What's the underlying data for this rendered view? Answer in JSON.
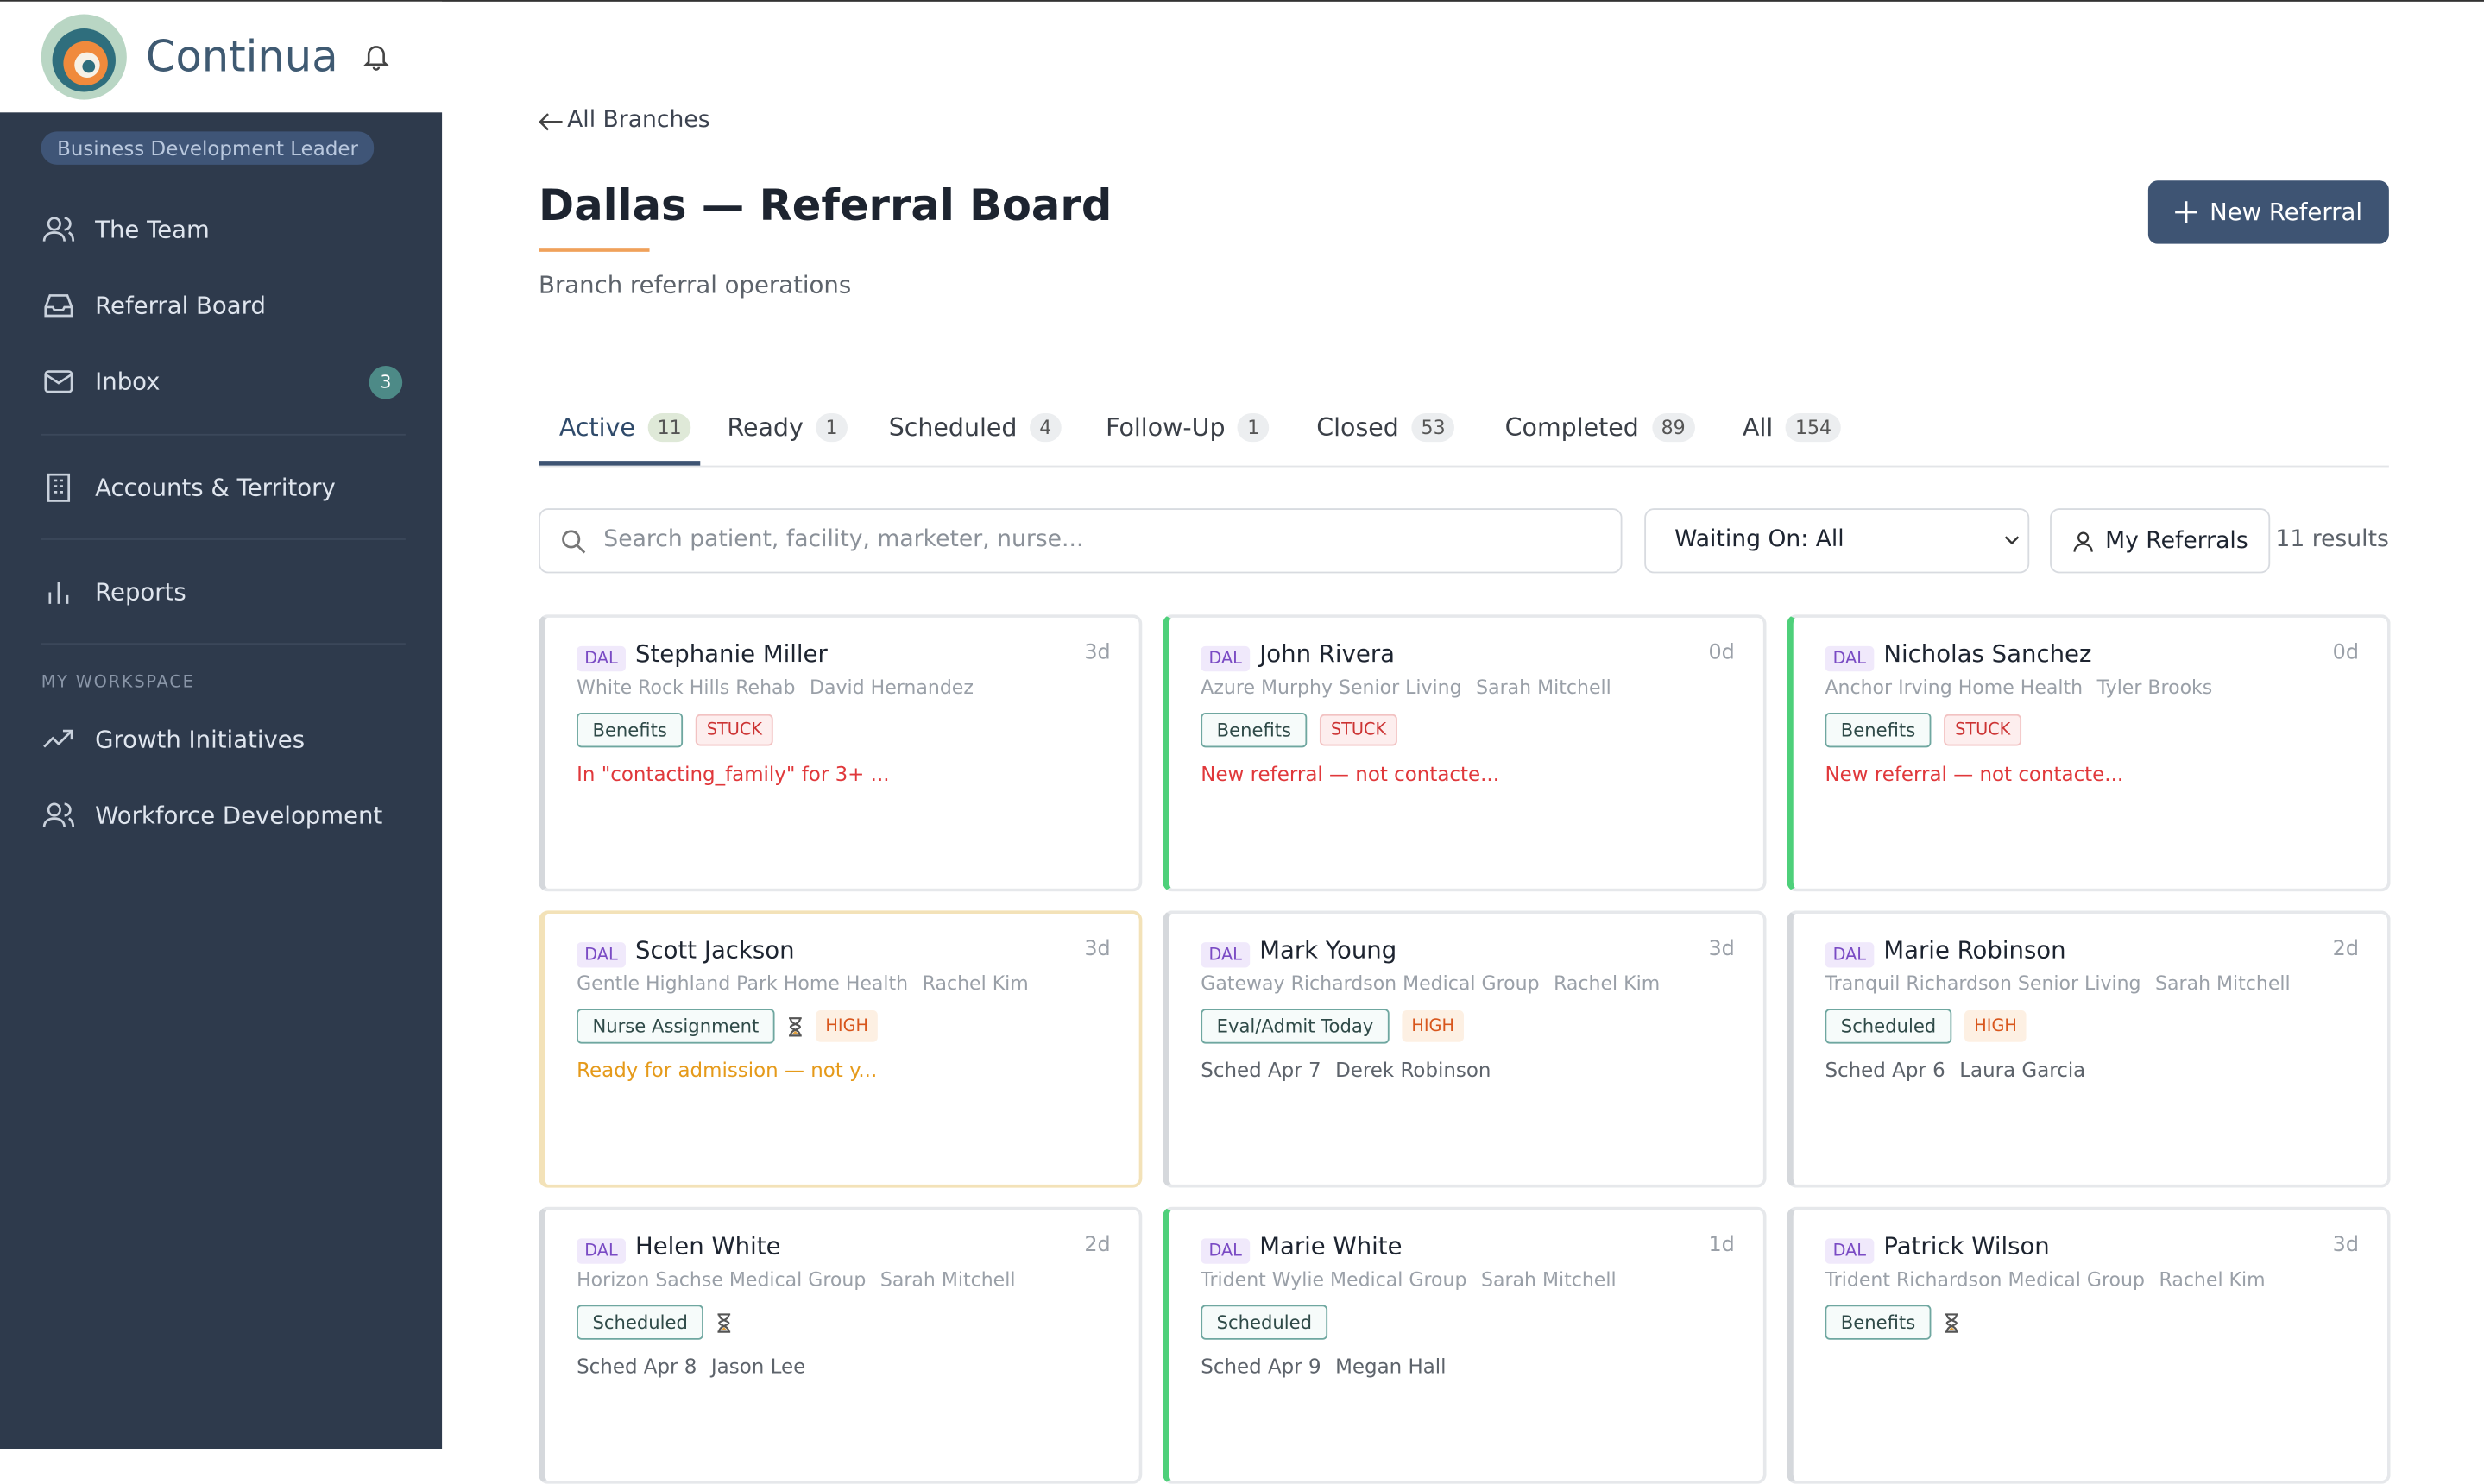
{
  "brand": "Continua",
  "role": "Business Development Leader",
  "nav": [
    {
      "label": "The Team"
    },
    {
      "label": "Referral Board"
    },
    {
      "label": "Inbox",
      "badge": 3
    },
    {
      "label": "Accounts & Territory"
    },
    {
      "label": "Reports"
    }
  ],
  "workspace": {
    "title": "MY WORKSPACE",
    "items": [
      {
        "label": "Growth Initiatives"
      },
      {
        "label": "Workforce Development"
      }
    ]
  },
  "back": "All Branches",
  "title": "Dallas — Referral Board",
  "subtitle": "Branch referral operations",
  "new_button": "New Referral",
  "tabs": [
    {
      "label": "Active",
      "count": 11
    },
    {
      "label": "Ready",
      "count": 1
    },
    {
      "label": "Scheduled",
      "count": 4
    },
    {
      "label": "Follow-Up",
      "count": 1
    },
    {
      "label": "Closed",
      "count": 53
    },
    {
      "label": "Completed",
      "count": 89
    },
    {
      "label": "All",
      "count": 154
    }
  ],
  "search_placeholder": "Search patient, facility, marketer, nurse...",
  "filter": "Waiting On: All",
  "my_referrals": "My Referrals",
  "results": "11 results",
  "cards": [
    {
      "branch": "DAL",
      "name": "Stephanie Miller",
      "facility": "White Rock Hills Rehab",
      "person": "David Hernandez",
      "age": "3d",
      "accent": "#d5d8dc",
      "tags": [
        {
          "label": "Benefits",
          "tone": "plain"
        },
        {
          "label": "STUCK",
          "tone": "red"
        }
      ],
      "note": "In \"contacting_family\" for 3+ ...",
      "note_tone": "red"
    },
    {
      "branch": "DAL",
      "name": "John Rivera",
      "facility": "Azure Murphy Senior Living",
      "person": "Sarah Mitchell",
      "age": "0d",
      "accent": "#4ed07a",
      "tags": [
        {
          "label": "Benefits",
          "tone": "plain"
        },
        {
          "label": "STUCK",
          "tone": "red"
        }
      ],
      "note": "New referral — not contacte...",
      "note_tone": "red"
    },
    {
      "branch": "DAL",
      "name": "Nicholas Sanchez",
      "facility": "Anchor Irving Home Health",
      "person": "Tyler Brooks",
      "age": "0d",
      "accent": "#4ed07a",
      "tags": [
        {
          "label": "Benefits",
          "tone": "plain"
        },
        {
          "label": "STUCK",
          "tone": "red"
        }
      ],
      "note": "New referral — not contacte...",
      "note_tone": "red"
    },
    {
      "branch": "DAL",
      "name": "Scott Jackson",
      "facility": "Gentle Highland Park Home Health",
      "person": "Rachel Kim",
      "age": "3d",
      "accent": "#f3e2b8",
      "tags": [
        {
          "label": "Nurse Assignment",
          "tone": "plain"
        },
        {
          "label": "HIGH",
          "tone": "orange"
        }
      ],
      "waiting": true,
      "note": "Ready for admission — not y...",
      "note_tone": "amber"
    },
    {
      "branch": "DAL",
      "name": "Mark Young",
      "facility": "Gateway Richardson Medical Group",
      "person": "Rachel Kim",
      "age": "3d",
      "accent": "#d5d8dc",
      "tags": [
        {
          "label": "Eval/Admit Today",
          "tone": "plain"
        },
        {
          "label": "HIGH",
          "tone": "orange"
        }
      ],
      "schedule": [
        "Sched Apr 7",
        "Derek Robinson"
      ]
    },
    {
      "branch": "DAL",
      "name": "Marie Robinson",
      "facility": "Tranquil Richardson Senior Living",
      "person": "Sarah Mitchell",
      "age": "2d",
      "accent": "#d5d8dc",
      "tags": [
        {
          "label": "Scheduled",
          "tone": "plain"
        },
        {
          "label": "HIGH",
          "tone": "orange"
        }
      ],
      "schedule": [
        "Sched Apr 6",
        "Laura Garcia"
      ]
    },
    {
      "branch": "DAL",
      "name": "Helen White",
      "facility": "Horizon Sachse Medical Group",
      "person": "Sarah Mitchell",
      "age": "2d",
      "accent": "#d5d8dc",
      "tags": [
        {
          "label": "Scheduled",
          "tone": "plain"
        }
      ],
      "waiting": true,
      "schedule": [
        "Sched Apr 8",
        "Jason Lee"
      ]
    },
    {
      "branch": "DAL",
      "name": "Marie White",
      "facility": "Trident Wylie Medical Group",
      "person": "Sarah Mitchell",
      "age": "1d",
      "accent": "#4ed07a",
      "tags": [
        {
          "label": "Scheduled",
          "tone": "plain"
        }
      ],
      "schedule": [
        "Sched Apr 9",
        "Megan Hall"
      ]
    },
    {
      "branch": "DAL",
      "name": "Patrick Wilson",
      "facility": "Trident Richardson Medical Group",
      "person": "Rachel Kim",
      "age": "3d",
      "accent": "#d5d8dc",
      "tags": [
        {
          "label": "Benefits",
          "tone": "plain"
        }
      ],
      "waiting": true,
      "tags2": null,
      "schedule": null
    }
  ]
}
